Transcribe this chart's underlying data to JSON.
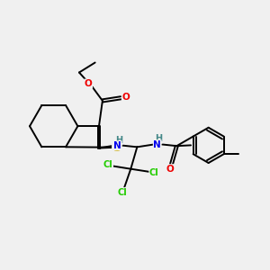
{
  "bg_color": "#f0f0f0",
  "fig_size": [
    3.0,
    3.0
  ],
  "dpi": 100,
  "atom_colors": {
    "C": "#000000",
    "S": "#ccaa00",
    "N": "#0000ee",
    "O": "#ee0000",
    "Cl": "#22cc00",
    "H": "#448888"
  },
  "bond_color": "#000000",
  "bond_width": 1.4,
  "font_size": 7.5
}
